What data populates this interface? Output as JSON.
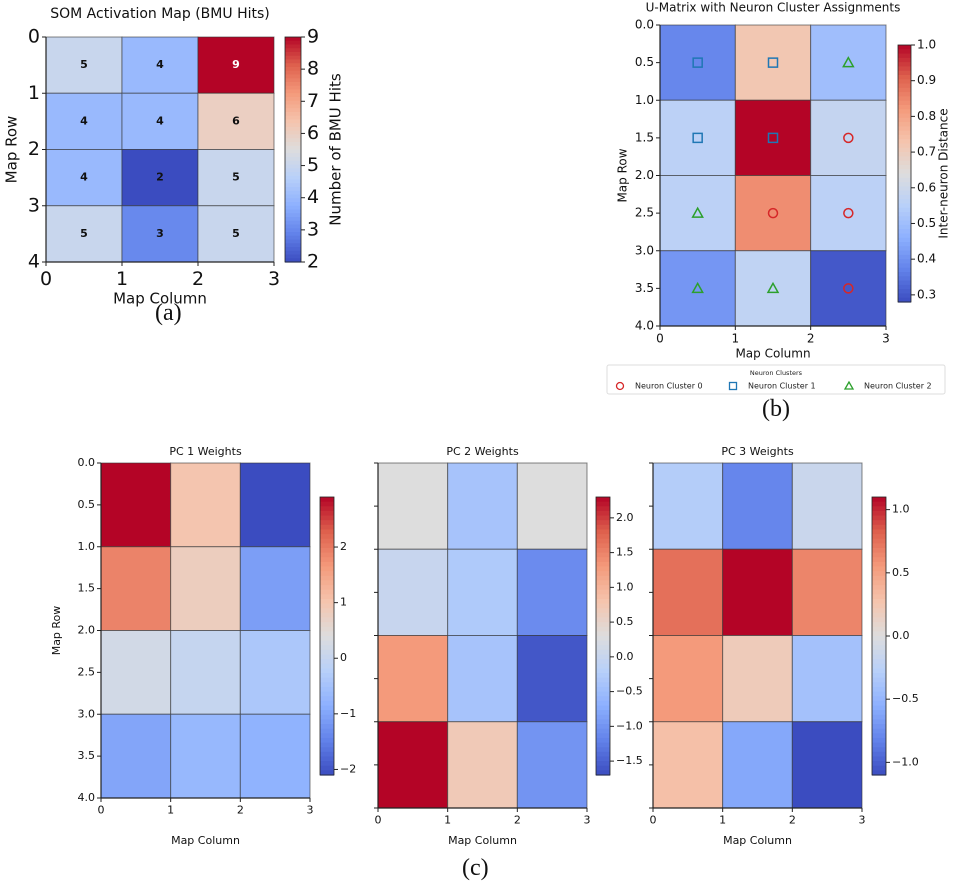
{
  "captions": {
    "a": "(a)",
    "b": "(b)",
    "c": "(c)"
  },
  "chart_data": [
    {
      "id": "a",
      "type": "heatmap",
      "title": "SOM Activation Map (BMU Hits)",
      "xlabel": "Map Column",
      "ylabel": "Map Row",
      "xticks": [
        "0",
        "1",
        "2",
        "3"
      ],
      "yticks": [
        "0",
        "1",
        "2",
        "3",
        "4"
      ],
      "xlim": [
        0,
        3
      ],
      "ylim": [
        0,
        4
      ],
      "colormap": "coolwarm",
      "values": [
        [
          5,
          4,
          9
        ],
        [
          4,
          4,
          6
        ],
        [
          4,
          2,
          5
        ],
        [
          5,
          3,
          5
        ]
      ],
      "annotations": true,
      "colorbar": {
        "label": "Number of BMU Hits",
        "range": [
          2,
          9
        ],
        "ticks": [
          "2",
          "3",
          "4",
          "5",
          "6",
          "7",
          "8",
          "9"
        ]
      }
    },
    {
      "id": "b",
      "type": "heatmap",
      "title": "U-Matrix with Neuron Cluster Assignments",
      "xlabel": "Map Column",
      "ylabel": "Map Row",
      "xticks": [
        "0",
        "1",
        "2",
        "3"
      ],
      "yticks": [
        "0.0",
        "0.5",
        "1.0",
        "1.5",
        "2.0",
        "2.5",
        "3.0",
        "3.5",
        "4.0"
      ],
      "xlim": [
        0,
        3
      ],
      "ylim": [
        0,
        4
      ],
      "colormap": "coolwarm",
      "values": [
        [
          0.38,
          0.72,
          0.5
        ],
        [
          0.56,
          1.0,
          0.58
        ],
        [
          0.56,
          0.84,
          0.56
        ],
        [
          0.41,
          0.57,
          0.3
        ]
      ],
      "clusters": [
        [
          1,
          1,
          2
        ],
        [
          1,
          1,
          0
        ],
        [
          2,
          0,
          0
        ],
        [
          2,
          2,
          0
        ]
      ],
      "colorbar": {
        "label": "Inter-neuron Distance",
        "range": [
          0.28,
          1.0
        ],
        "ticks": [
          "0.3",
          "0.4",
          "0.5",
          "0.6",
          "0.7",
          "0.8",
          "0.9",
          "1.0"
        ]
      },
      "legend": {
        "title": "Neuron Clusters",
        "placement": "bottom",
        "entries": [
          {
            "label": "Neuron Cluster 0",
            "marker": "circle",
            "color": "#d62728"
          },
          {
            "label": "Neuron Cluster 1",
            "marker": "square",
            "color": "#1f77b4"
          },
          {
            "label": "Neuron Cluster 2",
            "marker": "triangle",
            "color": "#2ca02c"
          }
        ]
      }
    },
    {
      "id": "c1",
      "type": "heatmap",
      "title": "PC 1 Weights",
      "xlabel": "Map Column",
      "ylabel": "Map Row",
      "xticks": [
        "0",
        "1",
        "2",
        "3"
      ],
      "yticks": [
        "0.0",
        "0.5",
        "1.0",
        "1.5",
        "2.0",
        "2.5",
        "3.0",
        "3.5",
        "4.0"
      ],
      "xlim": [
        0,
        3
      ],
      "ylim": [
        0,
        4
      ],
      "colormap": "coolwarm",
      "values": [
        [
          2.9,
          1.0,
          -2.1
        ],
        [
          1.9,
          0.8,
          -1.1
        ],
        [
          0.2,
          0.0,
          -0.4
        ],
        [
          -1.0,
          -0.7,
          -0.8
        ]
      ],
      "colorbar": {
        "label": "",
        "range": [
          -2.1,
          2.9
        ],
        "ticks": [
          "−2",
          "−1",
          "0",
          "1",
          "2"
        ]
      }
    },
    {
      "id": "c2",
      "type": "heatmap",
      "title": "PC 2 Weights",
      "xlabel": "Map Column",
      "ylabel": "",
      "xticks": [
        "0",
        "1",
        "2",
        "3"
      ],
      "yticks": [],
      "xlim": [
        0,
        3
      ],
      "ylim": [
        0,
        4
      ],
      "colormap": "coolwarm",
      "values": [
        [
          0.3,
          -0.4,
          0.3
        ],
        [
          0.0,
          -0.3,
          -1.1
        ],
        [
          1.3,
          -0.4,
          -1.6
        ],
        [
          2.3,
          0.7,
          -1.0
        ]
      ],
      "colorbar": {
        "label": "",
        "range": [
          -1.7,
          2.3
        ],
        "ticks": [
          "−1.5",
          "−1.0",
          "−0.5",
          "0.0",
          "0.5",
          "1.0",
          "1.5",
          "2.0"
        ]
      }
    },
    {
      "id": "c3",
      "type": "heatmap",
      "title": "PC 3 Weights",
      "xlabel": "Map Column",
      "ylabel": "",
      "xticks": [
        "0",
        "1",
        "2",
        "3"
      ],
      "yticks": [],
      "xlim": [
        0,
        3
      ],
      "ylim": [
        0,
        4
      ],
      "colormap": "coolwarm",
      "values": [
        [
          -0.3,
          -0.8,
          -0.15
        ],
        [
          0.75,
          1.1,
          0.65
        ],
        [
          0.55,
          0.2,
          -0.4
        ],
        [
          0.3,
          -0.6,
          -1.1
        ]
      ],
      "colorbar": {
        "label": "",
        "range": [
          -1.1,
          1.1
        ],
        "ticks": [
          "−1.0",
          "−0.5",
          "0.0",
          "0.5",
          "1.0"
        ]
      }
    }
  ]
}
